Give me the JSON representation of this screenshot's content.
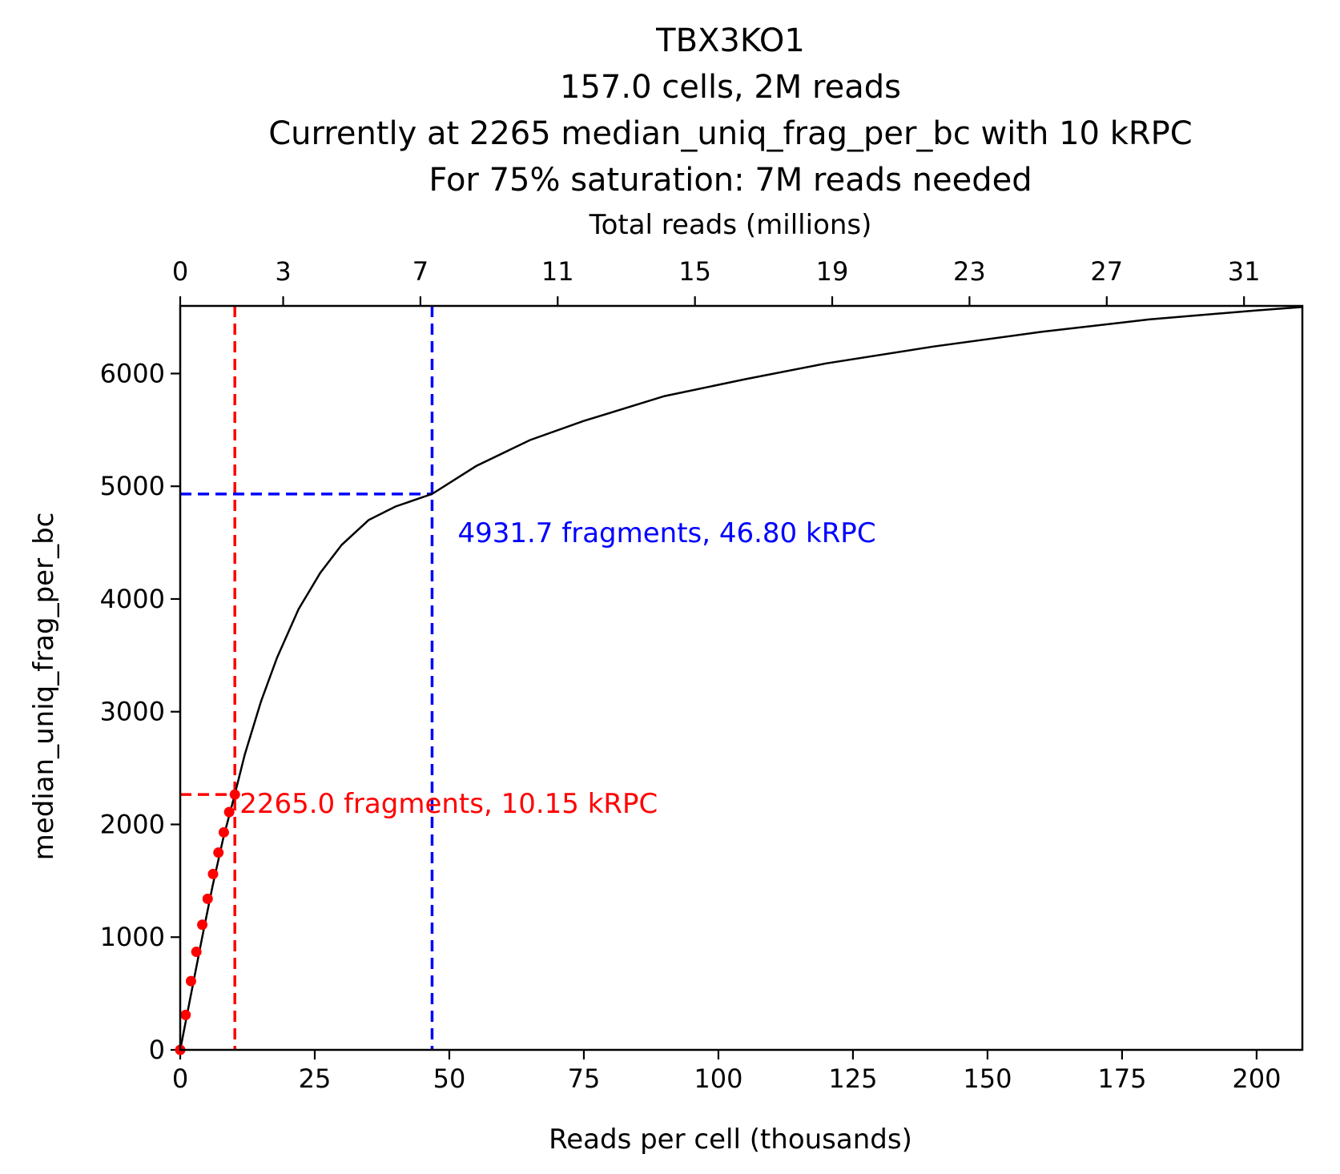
{
  "chart_data": {
    "type": "line",
    "title_lines": [
      "TBX3KO1",
      "157.0 cells, 2M reads",
      "Currently at 2265 median_uniq_frag_per_bc with 10 kRPC",
      "For 75% saturation: 7M reads needed"
    ],
    "xlabel": "Reads per cell (thousands)",
    "ylabel": "median_uniq_frag_per_bc",
    "x2label": "Total reads (millions)",
    "xlim": [
      0,
      208.5
    ],
    "ylim": [
      0,
      6600
    ],
    "x2lim": [
      0,
      32.7
    ],
    "x_ticks": [
      0,
      25,
      50,
      75,
      100,
      125,
      150,
      175,
      200
    ],
    "y_ticks": [
      0,
      1000,
      2000,
      3000,
      4000,
      5000,
      6000
    ],
    "x2_ticks": [
      0,
      3,
      7,
      11,
      15,
      19,
      23,
      27,
      31
    ],
    "x2_tick_labels": [
      "0",
      "3",
      "7",
      "11",
      "15",
      "19",
      "23",
      "27",
      "31"
    ],
    "series": [
      {
        "kind": "points",
        "color": "#ff0000",
        "x": [
          0,
          1.0,
          2.0,
          3.0,
          4.1,
          5.1,
          6.1,
          7.1,
          8.1,
          9.1,
          10.15
        ],
        "y": [
          0,
          310,
          610,
          870,
          1110,
          1340,
          1560,
          1750,
          1930,
          2110,
          2265
        ]
      },
      {
        "kind": "fit-curve",
        "color": "#000000",
        "x": [
          0,
          2,
          4,
          6,
          8,
          10,
          12,
          15,
          18,
          22,
          26,
          30,
          35,
          40,
          46.8,
          55,
          65,
          75,
          90,
          105,
          120,
          140,
          160,
          180,
          200,
          208.5
        ],
        "y": [
          0,
          490,
          980,
          1450,
          1880,
          2240,
          2620,
          3090,
          3480,
          3910,
          4230,
          4480,
          4700,
          4820,
          4931.7,
          5180,
          5410,
          5580,
          5800,
          5950,
          6090,
          6240,
          6370,
          6480,
          6560,
          6590
        ]
      }
    ],
    "annotations": [
      {
        "text": "2265.0 fragments, 10.15 kRPC",
        "x": 10.15,
        "y": 2265.0,
        "color": "#ff0000"
      },
      {
        "text": "4931.7 fragments, 46.80 kRPC",
        "x": 46.8,
        "y": 4931.7,
        "color": "#0000ff"
      }
    ]
  }
}
